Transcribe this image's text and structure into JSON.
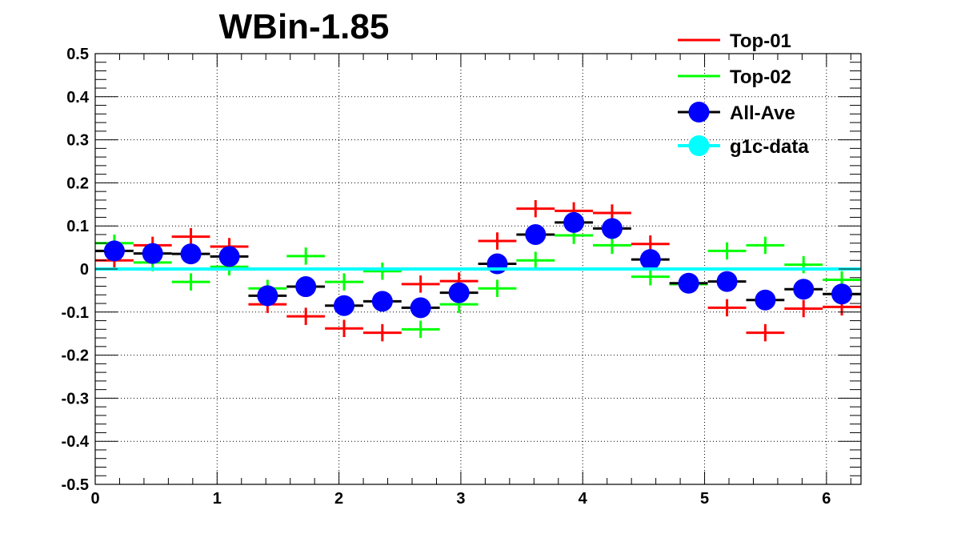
{
  "chart_data": {
    "type": "scatter",
    "title": "WBin-1.85",
    "xlabel": "",
    "ylabel": "",
    "xlim": [
      0,
      6.2832
    ],
    "ylim": [
      -0.5,
      0.5
    ],
    "grid": true,
    "legend_position": "top-right",
    "x_ticks": [
      "0",
      "1",
      "2",
      "3",
      "4",
      "5",
      "6"
    ],
    "y_ticks": [
      "0.5",
      "0.4",
      "0.3",
      "0.2",
      "0.1",
      "0",
      "-0.1",
      "-0.2",
      "-0.3",
      "-0.4",
      "-0.5"
    ],
    "bin_half_width": 0.157,
    "x": [
      0.157,
      0.471,
      0.785,
      1.1,
      1.414,
      1.728,
      2.042,
      2.356,
      2.67,
      2.985,
      3.299,
      3.613,
      3.927,
      4.241,
      4.555,
      4.869,
      5.184,
      5.498,
      5.812,
      6.126
    ],
    "series": [
      {
        "name": "Top-01",
        "color": "#ff0000",
        "style": "cross",
        "values": [
          0.02,
          0.055,
          0.075,
          0.052,
          -0.082,
          -0.11,
          -0.138,
          -0.148,
          -0.035,
          -0.028,
          0.065,
          0.14,
          0.135,
          0.13,
          0.058,
          -0.035,
          -0.09,
          -0.148,
          -0.092,
          -0.088
        ],
        "y_err": [
          0.02,
          0.02,
          0.02,
          0.02,
          0.02,
          0.02,
          0.02,
          0.02,
          0.02,
          0.02,
          0.02,
          0.02,
          0.02,
          0.02,
          0.02,
          0.02,
          0.02,
          0.02,
          0.02,
          0.02
        ]
      },
      {
        "name": "Top-02",
        "color": "#00ff00",
        "style": "cross",
        "values": [
          0.06,
          0.015,
          -0.03,
          0.005,
          -0.045,
          0.03,
          -0.03,
          -0.005,
          -0.14,
          -0.082,
          -0.045,
          0.02,
          0.078,
          0.055,
          -0.018,
          -0.035,
          0.042,
          0.055,
          0.01,
          -0.025
        ],
        "y_err": [
          0.02,
          0.02,
          0.02,
          0.02,
          0.02,
          0.02,
          0.02,
          0.02,
          0.02,
          0.02,
          0.02,
          0.02,
          0.02,
          0.02,
          0.02,
          0.02,
          0.02,
          0.02,
          0.02,
          0.02
        ]
      },
      {
        "name": "All-Ave",
        "color": "#0000ff",
        "style": "marker",
        "values": [
          0.042,
          0.036,
          0.035,
          0.029,
          -0.062,
          -0.041,
          -0.085,
          -0.075,
          -0.09,
          -0.055,
          0.012,
          0.08,
          0.108,
          0.094,
          0.022,
          -0.033,
          -0.029,
          -0.072,
          -0.047,
          -0.058
        ]
      },
      {
        "name": "g1c-data",
        "color": "#00ffff",
        "style": "line",
        "values": [
          0,
          0,
          0,
          0,
          0,
          0,
          0,
          0,
          0,
          0,
          0,
          0,
          0,
          0,
          0,
          0,
          0,
          0,
          0,
          0
        ]
      }
    ]
  }
}
